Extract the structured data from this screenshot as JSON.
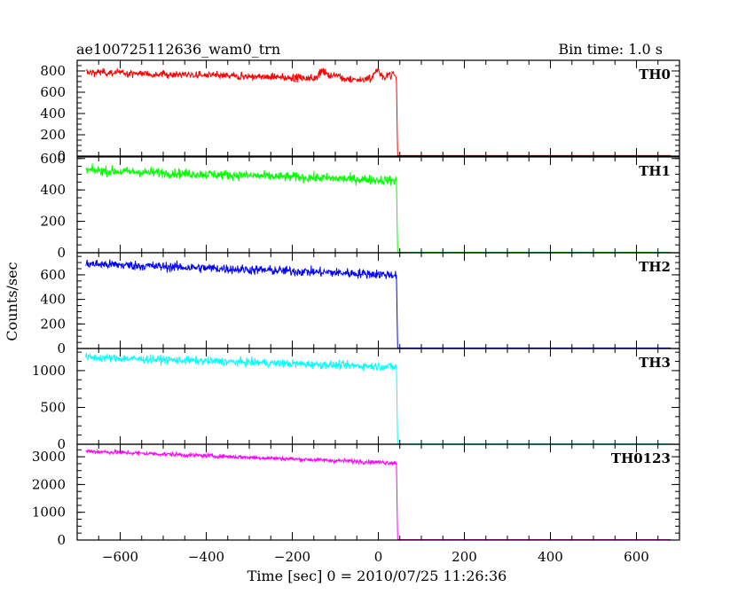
{
  "header": {
    "title": "ae100725112636_wam0_trn",
    "bin_time": "Bin time: 1.0 s"
  },
  "chart_data": {
    "type": "line",
    "title": "ae100725112636_wam0_trn",
    "subtitle": "Bin time: 1.0 s",
    "xlabel": "Time [sec] 0 = 2010/07/25 11:26:36",
    "ylabel": "Counts/sec",
    "xlim": [
      -700,
      700
    ],
    "x_ticks": [
      -600,
      -400,
      -200,
      0,
      200,
      400,
      600
    ],
    "x_data_range": [
      -680,
      680
    ],
    "drop_time": 42,
    "grid": false,
    "panels": [
      {
        "name": "TH0",
        "color": "#ff0000",
        "ylim": [
          0,
          900
        ],
        "y_ticks": [
          0,
          200,
          400,
          600,
          800
        ],
        "level_start": 790,
        "level_end": 710,
        "noise": 25,
        "bumps": [
          {
            "t": -130,
            "v": 95
          },
          {
            "t": -100,
            "v": 50
          },
          {
            "t": 0,
            "v": 110
          },
          {
            "t": 30,
            "v": 70
          }
        ],
        "post_level": 5
      },
      {
        "name": "TH1",
        "color": "#00ff00",
        "ylim": [
          0,
          610
        ],
        "y_ticks": [
          0,
          200,
          400,
          600
        ],
        "level_start": 525,
        "level_end": 460,
        "noise": 22,
        "bumps": [],
        "post_level": 3
      },
      {
        "name": "TH2",
        "color": "#0000ff",
        "ylim": [
          0,
          780
        ],
        "y_ticks": [
          0,
          200,
          400,
          600
        ],
        "level_start": 690,
        "level_end": 600,
        "noise": 28,
        "bumps": [],
        "post_level": 4
      },
      {
        "name": "TH3",
        "color": "#00ffff",
        "ylim": [
          0,
          1300
        ],
        "y_ticks": [
          0,
          500,
          1000
        ],
        "level_start": 1180,
        "level_end": 1050,
        "noise": 40,
        "bumps": [],
        "post_level": 5
      },
      {
        "name": "TH0123",
        "color": "#ff00ff",
        "ylim": [
          0,
          3450
        ],
        "y_ticks": [
          0,
          1000,
          2000,
          3000
        ],
        "level_start": 3200,
        "level_end": 2780,
        "noise": 55,
        "bumps": [],
        "post_level": 15
      }
    ]
  }
}
